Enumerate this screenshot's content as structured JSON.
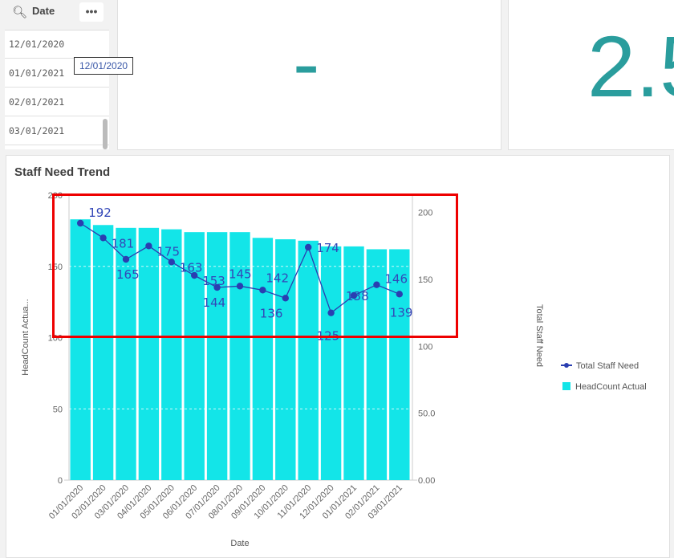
{
  "filter": {
    "title": "Date",
    "more_label": "•••",
    "items": [
      "12/01/2020",
      "01/01/2021",
      "02/01/2021",
      "03/01/2021"
    ],
    "tooltip": "12/01/2020"
  },
  "kpi1": {
    "value": "-"
  },
  "kpi2": {
    "value": "2.5"
  },
  "chart_title": "Staff Need Trend",
  "colors": {
    "bar": "#13e5e8",
    "line": "#2a3eb1",
    "kpi": "#2a9d9d",
    "highlight": "#e00000"
  },
  "chart_data": {
    "type": "bar+line",
    "title": "Staff Need Trend",
    "xlabel": "Date",
    "ylabel": "HeadCount Actua...",
    "y2label": "Total Staff Need",
    "categories": [
      "01/01/2020",
      "02/01/2020",
      "03/01/2020",
      "04/01/2020",
      "05/01/2020",
      "06/01/2020",
      "07/01/2020",
      "08/01/2020",
      "09/01/2020",
      "10/01/2020",
      "11/01/2020",
      "12/01/2020",
      "01/01/2021",
      "02/01/2021",
      "03/01/2021"
    ],
    "series": [
      {
        "name": "HeadCount Actual",
        "type": "bar",
        "axis": "left",
        "values": [
          183,
          179,
          177,
          177,
          176,
          174,
          174,
          174,
          170,
          169,
          168,
          164,
          164,
          162,
          162
        ]
      },
      {
        "name": "Total Staff Need",
        "type": "line",
        "axis": "right",
        "values": [
          192,
          181,
          165,
          175,
          163,
          153,
          144,
          145,
          142,
          136,
          174,
          125,
          138,
          146,
          139
        ]
      }
    ],
    "ylim": [
      0,
      200
    ],
    "yticks": [
      "0",
      "50",
      "100",
      "150",
      "200"
    ],
    "y2lim": [
      0,
      213
    ],
    "y2ticks": [
      "0.00",
      "50.0",
      "100",
      "150",
      "200"
    ],
    "legend": [
      "Total Staff Need",
      "HeadCount Actual"
    ],
    "legend_position": "right"
  }
}
